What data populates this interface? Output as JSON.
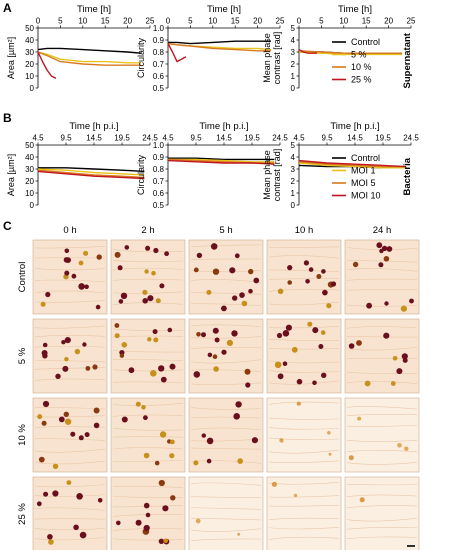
{
  "panels": [
    {
      "letter": "A",
      "group_label": "Supernatant"
    },
    {
      "letter": "B",
      "group_label": "Bacteria"
    },
    {
      "letter": "C"
    }
  ],
  "colors": {
    "black": "#000000",
    "yellow": "#e8c21a",
    "orange": "#d77a1f",
    "red": "#c0151f",
    "tile_bg": "#f7e3cf",
    "cell_dark": "#6b0f1e",
    "cell_mid": "#8a3a10",
    "cell_gold": "#c7901a"
  },
  "chart_data": [
    {
      "type": "line",
      "panel": "A",
      "index": 1,
      "xlabel": "Time [h]",
      "ylabel": "Area [µm²]",
      "xlim": [
        0,
        25
      ],
      "ylim": [
        0,
        50
      ],
      "xticks": [
        "0",
        "5",
        "10",
        "15",
        "20",
        "25"
      ],
      "yticks": [
        "0",
        "10",
        "20",
        "30",
        "40",
        "50"
      ],
      "series": [
        {
          "name": "Control",
          "color": "#000000",
          "x": [
            0,
            2,
            5,
            10,
            15,
            20,
            23
          ],
          "y": [
            32,
            33,
            33,
            32,
            31,
            30,
            29
          ]
        },
        {
          "name": "5 %",
          "color": "#e8c21a",
          "x": [
            0,
            2,
            5,
            10,
            15,
            20,
            23
          ],
          "y": [
            30,
            28,
            24,
            22,
            22,
            21,
            21
          ]
        },
        {
          "name": "10 %",
          "color": "#d77a1f",
          "x": [
            0,
            2,
            5,
            10,
            15,
            20,
            23
          ],
          "y": [
            30,
            27,
            22,
            20,
            19,
            19,
            19
          ]
        },
        {
          "name": "25 %",
          "color": "#c0151f",
          "x": [
            0,
            1,
            2,
            3,
            4
          ],
          "y": [
            30,
            22,
            15,
            10,
            8
          ]
        }
      ]
    },
    {
      "type": "line",
      "panel": "A",
      "index": 2,
      "xlabel": "Time [h]",
      "ylabel": "Circularity",
      "xlim": [
        0,
        25
      ],
      "ylim": [
        0.5,
        1.0
      ],
      "xticks": [
        "0",
        "5",
        "10",
        "15",
        "20",
        "25"
      ],
      "yticks": [
        "0.5",
        "0.6",
        "0.7",
        "0.8",
        "0.9",
        "1.0"
      ],
      "series": [
        {
          "name": "Control",
          "color": "#000000",
          "x": [
            0,
            2,
            5,
            10,
            15,
            20,
            23
          ],
          "y": [
            0.88,
            0.88,
            0.87,
            0.88,
            0.89,
            0.89,
            0.89
          ]
        },
        {
          "name": "5 %",
          "color": "#e8c21a",
          "x": [
            0,
            2,
            5,
            10,
            15,
            20,
            23
          ],
          "y": [
            0.87,
            0.86,
            0.85,
            0.84,
            0.83,
            0.83,
            0.82
          ]
        },
        {
          "name": "10 %",
          "color": "#d77a1f",
          "x": [
            0,
            2,
            5,
            10,
            15,
            20,
            23
          ],
          "y": [
            0.87,
            0.86,
            0.85,
            0.83,
            0.82,
            0.81,
            0.81
          ]
        },
        {
          "name": "25 %",
          "color": "#c0151f",
          "x": [
            0,
            1,
            2,
            3,
            4
          ],
          "y": [
            0.87,
            0.8,
            0.72,
            0.74,
            0.76
          ]
        }
      ]
    },
    {
      "type": "line",
      "panel": "A",
      "index": 3,
      "xlabel": "Time [h]",
      "ylabel": "Mean phase contrast [rad]",
      "xlim": [
        0,
        25
      ],
      "ylim": [
        0,
        5
      ],
      "xticks": [
        "0",
        "5",
        "10",
        "15",
        "20",
        "25"
      ],
      "yticks": [
        "0",
        "1",
        "2",
        "3",
        "4",
        "5"
      ],
      "series": [
        {
          "name": "Control",
          "color": "#000000",
          "x": [
            0,
            5,
            10,
            15,
            20,
            23
          ],
          "y": [
            3.0,
            3.0,
            2.9,
            2.9,
            2.9,
            2.9
          ]
        },
        {
          "name": "5 %",
          "color": "#e8c21a",
          "x": [
            0,
            5,
            10,
            15,
            20,
            23
          ],
          "y": [
            3.0,
            2.9,
            2.8,
            2.8,
            2.8,
            2.8
          ]
        },
        {
          "name": "10 %",
          "color": "#d77a1f",
          "x": [
            0,
            5,
            10,
            15,
            20,
            23
          ],
          "y": [
            3.1,
            3.0,
            2.9,
            2.9,
            2.9,
            2.9
          ]
        },
        {
          "name": "25 %",
          "color": "#c0151f",
          "x": [
            0,
            1,
            2,
            3,
            4
          ],
          "y": [
            3.2,
            3.0,
            2.9,
            2.9,
            2.9
          ]
        }
      ]
    },
    {
      "type": "line",
      "panel": "B",
      "index": 1,
      "xlabel": "Time [h p.i.]",
      "ylabel": "Area [µm²]",
      "xlim": [
        4.5,
        24.5
      ],
      "ylim": [
        0,
        50
      ],
      "xticks": [
        "4.5",
        "9.5",
        "14.5",
        "19.5",
        "24.5"
      ],
      "yticks": [
        "0",
        "10",
        "20",
        "30",
        "40",
        "50"
      ],
      "series": [
        {
          "name": "Control",
          "color": "#000000",
          "x": [
            4.5,
            9.5,
            14.5,
            19.5,
            23.5
          ],
          "y": [
            31,
            31,
            30,
            29,
            28
          ]
        },
        {
          "name": "MOI 1",
          "color": "#e8c21a",
          "x": [
            4.5,
            9.5,
            14.5,
            19.5,
            23.5
          ],
          "y": [
            30,
            29,
            27,
            26,
            25
          ]
        },
        {
          "name": "MOI 5",
          "color": "#d77a1f",
          "x": [
            4.5,
            9.5,
            14.5,
            19.5,
            23.5
          ],
          "y": [
            29,
            27,
            25,
            24,
            23
          ]
        },
        {
          "name": "MOI 10",
          "color": "#c0151f",
          "x": [
            4.5,
            9.5,
            14.5,
            19.5,
            23.5
          ],
          "y": [
            28,
            26,
            24,
            23,
            22
          ]
        }
      ]
    },
    {
      "type": "line",
      "panel": "B",
      "index": 2,
      "xlabel": "Time [h p.i.]",
      "ylabel": "Circularity",
      "xlim": [
        4.5,
        24.5
      ],
      "ylim": [
        0.5,
        1.0
      ],
      "xticks": [
        "4.5",
        "9.5",
        "14.5",
        "19.5",
        "24.5"
      ],
      "yticks": [
        "0.5",
        "0.6",
        "0.7",
        "0.8",
        "0.9",
        "1.0"
      ],
      "series": [
        {
          "name": "Control",
          "color": "#000000",
          "x": [
            4.5,
            9.5,
            14.5,
            19.5,
            23.5
          ],
          "y": [
            0.89,
            0.89,
            0.88,
            0.88,
            0.88
          ]
        },
        {
          "name": "MOI 1",
          "color": "#e8c21a",
          "x": [
            4.5,
            9.5,
            14.5,
            19.5,
            23.5
          ],
          "y": [
            0.88,
            0.88,
            0.87,
            0.86,
            0.86
          ]
        },
        {
          "name": "MOI 5",
          "color": "#d77a1f",
          "x": [
            4.5,
            9.5,
            14.5,
            19.5,
            23.5
          ],
          "y": [
            0.88,
            0.87,
            0.86,
            0.85,
            0.85
          ]
        },
        {
          "name": "MOI 10",
          "color": "#c0151f",
          "x": [
            4.5,
            9.5,
            14.5,
            19.5,
            23.5
          ],
          "y": [
            0.87,
            0.86,
            0.85,
            0.85,
            0.84
          ]
        }
      ]
    },
    {
      "type": "line",
      "panel": "B",
      "index": 3,
      "xlabel": "Time [h p.i.]",
      "ylabel": "Mean phase contrast [rad]",
      "xlim": [
        4.5,
        24.5
      ],
      "ylim": [
        0,
        5
      ],
      "xticks": [
        "4.5",
        "9.5",
        "14.5",
        "19.5",
        "24.5"
      ],
      "yticks": [
        "0",
        "1",
        "2",
        "3",
        "4",
        "5"
      ],
      "series": [
        {
          "name": "Control",
          "color": "#000000",
          "x": [
            4.5,
            9.5,
            14.5,
            19.5,
            23.5
          ],
          "y": [
            3.3,
            3.2,
            3.2,
            3.1,
            3.1
          ]
        },
        {
          "name": "MOI 1",
          "color": "#e8c21a",
          "x": [
            4.5,
            9.5,
            14.5,
            19.5,
            23.5
          ],
          "y": [
            3.5,
            3.3,
            3.2,
            3.1,
            3.1
          ]
        },
        {
          "name": "MOI 5",
          "color": "#d77a1f",
          "x": [
            4.5,
            9.5,
            14.5,
            19.5,
            23.5
          ],
          "y": [
            3.6,
            3.4,
            3.3,
            3.2,
            3.2
          ]
        },
        {
          "name": "MOI 10",
          "color": "#c0151f",
          "x": [
            4.5,
            9.5,
            14.5,
            19.5,
            23.5
          ],
          "y": [
            3.7,
            3.5,
            3.4,
            3.3,
            3.2
          ]
        }
      ]
    }
  ],
  "legends": [
    {
      "panel": "A",
      "entries": [
        {
          "label": "Control",
          "color": "#000000"
        },
        {
          "label": "5 %",
          "color": "#e8c21a"
        },
        {
          "label": "10 %",
          "color": "#d77a1f"
        },
        {
          "label": "25 %",
          "color": "#c0151f"
        }
      ]
    },
    {
      "panel": "B",
      "entries": [
        {
          "label": "Control",
          "color": "#000000"
        },
        {
          "label": "MOI 1",
          "color": "#e8c21a"
        },
        {
          "label": "MOI 5",
          "color": "#d77a1f"
        },
        {
          "label": "MOI 10",
          "color": "#c0151f"
        }
      ]
    }
  ],
  "image_grid": {
    "columns": [
      "0 h",
      "2 h",
      "5 h",
      "10 h",
      "24 h"
    ],
    "rows": [
      {
        "label": "Control",
        "cell_density": [
          14,
          15,
          14,
          12,
          11
        ],
        "pale": [
          false,
          false,
          false,
          false,
          false
        ]
      },
      {
        "label": "5 %",
        "cell_density": [
          12,
          14,
          13,
          14,
          9
        ],
        "pale": [
          false,
          false,
          false,
          false,
          false
        ]
      },
      {
        "label": "10 %",
        "cell_density": [
          13,
          10,
          8,
          5,
          4
        ],
        "pale": [
          false,
          false,
          false,
          true,
          true
        ]
      },
      {
        "label": "25 %",
        "cell_density": [
          10,
          12,
          2,
          2,
          1
        ],
        "pale": [
          false,
          false,
          true,
          true,
          true
        ]
      }
    ]
  }
}
